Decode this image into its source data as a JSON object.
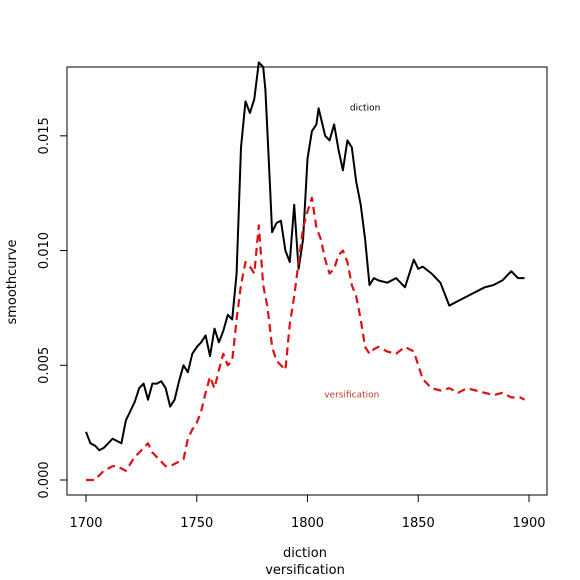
{
  "chart_data": {
    "type": "line",
    "xlabel_lines": [
      "diction",
      "versification"
    ],
    "ylabel": "smoothcurve",
    "xlim": [
      1700,
      1900
    ],
    "ylim": [
      0,
      0.018
    ],
    "xticks": [
      1700,
      1750,
      1800,
      1850,
      1900
    ],
    "yticks": [
      0.0,
      0.005,
      0.01,
      0.015
    ],
    "ytick_labels": [
      "0.000",
      "0.005",
      "0.010",
      "0.015"
    ],
    "grid": false,
    "annotations": [
      {
        "text": "diction",
        "x": 1826,
        "y": 0.0161,
        "color": "#000000"
      },
      {
        "text": "versification",
        "x": 1820,
        "y": 0.0036,
        "color": "#c0392b"
      }
    ],
    "series": [
      {
        "name": "diction",
        "color": "#000000",
        "style": "solid",
        "x": [
          1700,
          1702,
          1704,
          1706,
          1708,
          1710,
          1712,
          1714,
          1716,
          1718,
          1720,
          1722,
          1724,
          1726,
          1728,
          1730,
          1732,
          1734,
          1736,
          1738,
          1740,
          1742,
          1744,
          1746,
          1748,
          1750,
          1752,
          1754,
          1756,
          1758,
          1760,
          1762,
          1764,
          1766,
          1768,
          1770,
          1772,
          1774,
          1776,
          1778,
          1780,
          1781,
          1782,
          1783,
          1784,
          1786,
          1788,
          1790,
          1792,
          1794,
          1796,
          1798,
          1800,
          1802,
          1804,
          1805,
          1806,
          1808,
          1810,
          1812,
          1814,
          1816,
          1818,
          1820,
          1822,
          1824,
          1826,
          1828,
          1830,
          1832,
          1836,
          1840,
          1844,
          1848,
          1850,
          1852,
          1856,
          1860,
          1864,
          1868,
          1872,
          1876,
          1880,
          1884,
          1888,
          1892,
          1895,
          1898
        ],
        "y": [
          0.0021,
          0.0016,
          0.0015,
          0.0013,
          0.0014,
          0.0016,
          0.0018,
          0.0017,
          0.0016,
          0.0026,
          0.003,
          0.0034,
          0.004,
          0.0042,
          0.0035,
          0.0042,
          0.0042,
          0.0043,
          0.004,
          0.0032,
          0.0035,
          0.0043,
          0.005,
          0.0047,
          0.0055,
          0.0058,
          0.006,
          0.0063,
          0.0054,
          0.0066,
          0.006,
          0.0065,
          0.0072,
          0.007,
          0.009,
          0.0145,
          0.0165,
          0.016,
          0.0166,
          0.0182,
          0.018,
          0.017,
          0.015,
          0.013,
          0.0108,
          0.0112,
          0.0113,
          0.01,
          0.0095,
          0.012,
          0.0092,
          0.0105,
          0.014,
          0.0152,
          0.0155,
          0.0162,
          0.0158,
          0.015,
          0.0148,
          0.0155,
          0.0144,
          0.0135,
          0.0148,
          0.0145,
          0.013,
          0.012,
          0.0105,
          0.0085,
          0.0088,
          0.0087,
          0.0086,
          0.0088,
          0.0084,
          0.0096,
          0.0092,
          0.0093,
          0.009,
          0.0086,
          0.0076,
          0.0078,
          0.008,
          0.0082,
          0.0084,
          0.0085,
          0.0087,
          0.0091,
          0.0088,
          0.0088
        ]
      },
      {
        "name": "versification",
        "color": "#dd1111",
        "style": "dashed",
        "x": [
          1700,
          1702,
          1704,
          1706,
          1708,
          1710,
          1712,
          1714,
          1716,
          1718,
          1720,
          1722,
          1724,
          1726,
          1728,
          1730,
          1732,
          1734,
          1736,
          1738,
          1740,
          1742,
          1744,
          1746,
          1748,
          1750,
          1752,
          1754,
          1756,
          1758,
          1760,
          1762,
          1764,
          1766,
          1768,
          1770,
          1772,
          1774,
          1776,
          1778,
          1780,
          1782,
          1784,
          1786,
          1788,
          1790,
          1792,
          1794,
          1796,
          1798,
          1800,
          1802,
          1804,
          1806,
          1808,
          1810,
          1812,
          1814,
          1816,
          1818,
          1820,
          1822,
          1824,
          1826,
          1828,
          1830,
          1832,
          1836,
          1840,
          1844,
          1848,
          1850,
          1852,
          1856,
          1860,
          1864,
          1868,
          1872,
          1876,
          1880,
          1884,
          1888,
          1892,
          1896,
          1898
        ],
        "y": [
          0.0,
          0.0,
          0.0,
          0.0002,
          0.0004,
          0.0005,
          0.0006,
          0.0006,
          0.0005,
          0.0004,
          0.0007,
          0.001,
          0.0012,
          0.0014,
          0.0016,
          0.0012,
          0.001,
          0.0008,
          0.0006,
          0.0006,
          0.0007,
          0.0008,
          0.0009,
          0.0018,
          0.0022,
          0.0025,
          0.003,
          0.0038,
          0.0045,
          0.004,
          0.0048,
          0.0055,
          0.005,
          0.0052,
          0.007,
          0.0085,
          0.0095,
          0.0093,
          0.009,
          0.0111,
          0.0085,
          0.0075,
          0.0058,
          0.0052,
          0.005,
          0.0048,
          0.0068,
          0.008,
          0.0095,
          0.011,
          0.0117,
          0.0123,
          0.011,
          0.0105,
          0.0096,
          0.009,
          0.0092,
          0.0098,
          0.01,
          0.0095,
          0.0085,
          0.008,
          0.007,
          0.0058,
          0.0055,
          0.0057,
          0.0058,
          0.0056,
          0.0055,
          0.0058,
          0.0056,
          0.005,
          0.0044,
          0.004,
          0.0039,
          0.004,
          0.0038,
          0.004,
          0.0039,
          0.0038,
          0.0037,
          0.0038,
          0.0036,
          0.0036,
          0.0035
        ]
      }
    ]
  }
}
